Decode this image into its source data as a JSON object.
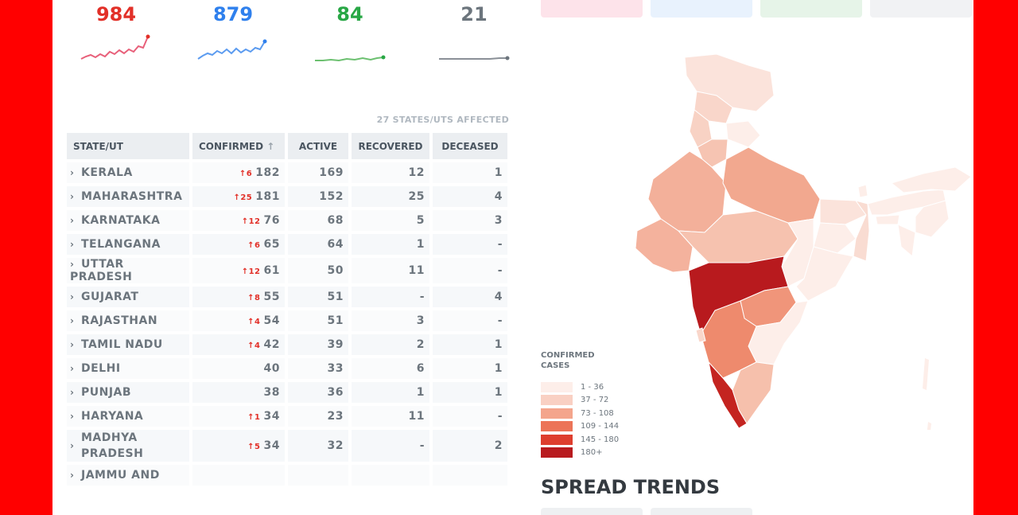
{
  "stats": [
    {
      "value": "984",
      "color": "#e23028"
    },
    {
      "value": "879",
      "color": "#2f80ed"
    },
    {
      "value": "84",
      "color": "#28a745"
    },
    {
      "value": "21",
      "color": "#6c757d"
    }
  ],
  "table": {
    "affected": "27 STATES/UTS AFFECTED",
    "headers": {
      "state": "STATE/UT",
      "confirmed": "CONFIRMED",
      "active": "ACTIVE",
      "recovered": "RECOVERED",
      "deceased": "DECEASED"
    },
    "sort_icon": "arrow-up-icon",
    "rows": [
      {
        "state": "KERALA",
        "delta": "↑6",
        "confirmed": "182",
        "active": "169",
        "recovered": "12",
        "deceased": "1"
      },
      {
        "state": "MAHARASHTRA",
        "delta": "↑25",
        "confirmed": "181",
        "active": "152",
        "recovered": "25",
        "deceased": "4"
      },
      {
        "state": "KARNATAKA",
        "delta": "↑12",
        "confirmed": "76",
        "active": "68",
        "recovered": "5",
        "deceased": "3"
      },
      {
        "state": "TELANGANA",
        "delta": "↑6",
        "confirmed": "65",
        "active": "64",
        "recovered": "1",
        "deceased": "-"
      },
      {
        "state": "UTTAR PRADESH",
        "delta": "↑12",
        "confirmed": "61",
        "active": "50",
        "recovered": "11",
        "deceased": "-"
      },
      {
        "state": "GUJARAT",
        "delta": "↑8",
        "confirmed": "55",
        "active": "51",
        "recovered": "-",
        "deceased": "4"
      },
      {
        "state": "RAJASTHAN",
        "delta": "↑4",
        "confirmed": "54",
        "active": "51",
        "recovered": "3",
        "deceased": "-"
      },
      {
        "state": "TAMIL NADU",
        "delta": "↑4",
        "confirmed": "42",
        "active": "39",
        "recovered": "2",
        "deceased": "1"
      },
      {
        "state": "DELHI",
        "delta": "",
        "confirmed": "40",
        "active": "33",
        "recovered": "6",
        "deceased": "1"
      },
      {
        "state": "PUNJAB",
        "delta": "",
        "confirmed": "38",
        "active": "36",
        "recovered": "1",
        "deceased": "1"
      },
      {
        "state": "HARYANA",
        "delta": "↑1",
        "confirmed": "34",
        "active": "23",
        "recovered": "11",
        "deceased": "-"
      },
      {
        "state": "MADHYA PRADESH",
        "delta": "↑5",
        "confirmed": "34",
        "active": "32",
        "recovered": "-",
        "deceased": "2"
      },
      {
        "state": "JAMMU AND",
        "delta": "",
        "confirmed": "",
        "active": "",
        "recovered": "",
        "deceased": ""
      }
    ]
  },
  "map": {
    "legend_title_1": "CONFIRMED",
    "legend_title_2": "CASES",
    "legend": [
      {
        "label": "1 - 36",
        "color": "#fdeee9"
      },
      {
        "label": "37 - 72",
        "color": "#f9d0c3"
      },
      {
        "label": "73 - 108",
        "color": "#f4a58c"
      },
      {
        "label": "109 - 144",
        "color": "#ec7458"
      },
      {
        "label": "145 - 180",
        "color": "#de3e2e"
      },
      {
        "label": "180+",
        "color": "#b81a1e"
      }
    ]
  },
  "spread_trends": "SPREAD TRENDS"
}
